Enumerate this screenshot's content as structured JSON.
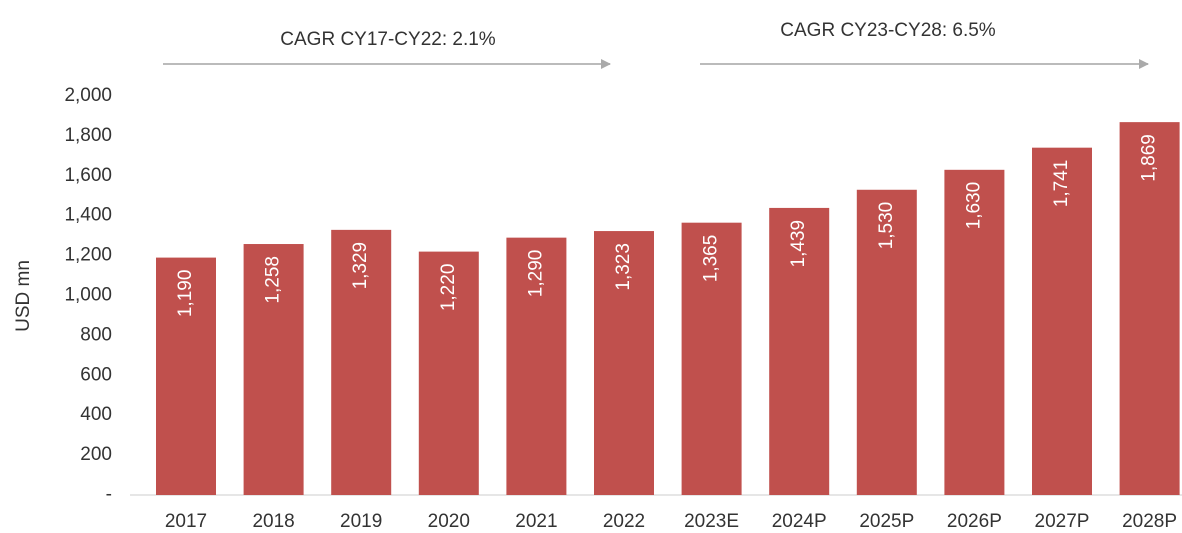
{
  "chart_data": {
    "type": "bar",
    "y_label": "USD mn",
    "annotations": [
      "CAGR CY17-CY22: 2.1%",
      "CAGR CY23-CY28: 6.5%"
    ],
    "categories": [
      "2017",
      "2018",
      "2019",
      "2020",
      "2021",
      "2022",
      "2023E",
      "2024P",
      "2025P",
      "2026P",
      "2027P",
      "2028P"
    ],
    "values": [
      1190,
      1258,
      1329,
      1220,
      1290,
      1323,
      1365,
      1439,
      1530,
      1630,
      1741,
      1869
    ],
    "value_labels": [
      "1,190",
      "1,258",
      "1,329",
      "1,220",
      "1,290",
      "1,323",
      "1,365",
      "1,439",
      "1,530",
      "1,630",
      "1,741",
      "1,869"
    ],
    "color": "#c0504d",
    "ylim": [
      0,
      2000
    ],
    "yticks": [
      {
        "value": 0,
        "label": "-"
      },
      200,
      400,
      600,
      800,
      {
        "value": 1000,
        "label": "1,000"
      },
      {
        "value": 1200,
        "label": "1,200"
      },
      {
        "value": 1400,
        "label": "1,400"
      },
      {
        "value": 1600,
        "label": "1,600"
      },
      {
        "value": 1800,
        "label": "1,800"
      },
      {
        "value": 2000,
        "label": "2,000"
      }
    ],
    "grid": false
  }
}
